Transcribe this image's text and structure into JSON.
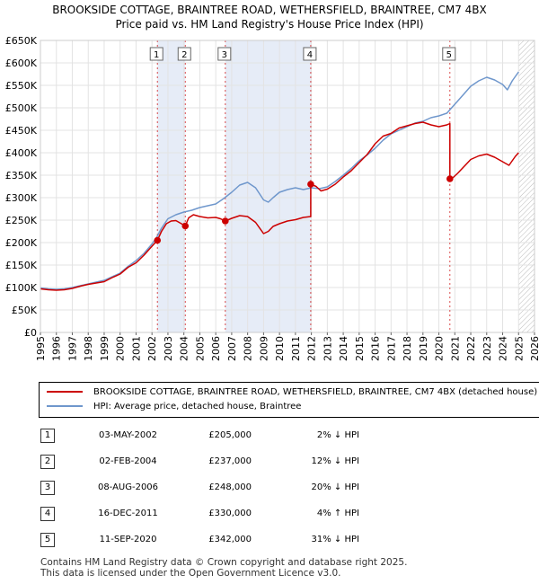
{
  "title": "BROOKSIDE COTTAGE, BRAINTREE ROAD, WETHERSFIELD, BRAINTREE, CM7 4BX",
  "subtitle": "Price paid vs. HM Land Registry's House Price Index (HPI)",
  "colors": {
    "property": "#cc0000",
    "hpi": "#6f97cc",
    "shade": "#e6ecf7",
    "hatch": "#bbbbbb"
  },
  "chart_data": {
    "type": "line",
    "xlim": [
      1995,
      2026
    ],
    "ylim": [
      0,
      650000
    ],
    "x_ticks": [
      "1995",
      "1996",
      "1997",
      "1998",
      "1999",
      "2000",
      "2001",
      "2002",
      "2003",
      "2004",
      "2005",
      "2006",
      "2007",
      "2008",
      "2009",
      "2010",
      "2011",
      "2012",
      "2013",
      "2014",
      "2015",
      "2016",
      "2017",
      "2018",
      "2019",
      "2020",
      "2021",
      "2022",
      "2023",
      "2024",
      "2025",
      "2026"
    ],
    "y_ticks": [
      {
        "value": 0,
        "label": "£0"
      },
      {
        "value": 50000,
        "label": "£50K"
      },
      {
        "value": 100000,
        "label": "£100K"
      },
      {
        "value": 150000,
        "label": "£150K"
      },
      {
        "value": 200000,
        "label": "£200K"
      },
      {
        "value": 250000,
        "label": "£250K"
      },
      {
        "value": 300000,
        "label": "£300K"
      },
      {
        "value": 350000,
        "label": "£350K"
      },
      {
        "value": 400000,
        "label": "£400K"
      },
      {
        "value": 450000,
        "label": "£450K"
      },
      {
        "value": 500000,
        "label": "£500K"
      },
      {
        "value": 550000,
        "label": "£550K"
      },
      {
        "value": 600000,
        "label": "£600K"
      },
      {
        "value": 650000,
        "label": "£650K"
      }
    ],
    "series": [
      {
        "name": "BROOKSIDE COTTAGE, BRAINTREE ROAD, WETHERSFIELD, BRAINTREE, CM7 4BX (detached house)",
        "color": "#cc0000",
        "x": [
          1995.0,
          1995.5,
          1996.0,
          1996.5,
          1997.0,
          1997.5,
          1998.0,
          1998.5,
          1999.0,
          1999.5,
          2000.0,
          2000.5,
          2001.0,
          2001.5,
          2002.0,
          2002.34,
          2002.34,
          2002.6,
          2002.9,
          2003.2,
          2003.5,
          2003.8,
          2004.09,
          2004.09,
          2004.3,
          2004.6,
          2005.0,
          2005.5,
          2006.0,
          2006.3,
          2006.6,
          2006.6,
          2007.0,
          2007.5,
          2008.0,
          2008.5,
          2009.0,
          2009.3,
          2009.6,
          2010.0,
          2010.5,
          2011.0,
          2011.5,
          2011.96,
          2011.96,
          2012.3,
          2012.6,
          2013.0,
          2013.5,
          2014.0,
          2014.5,
          2015.0,
          2015.5,
          2016.0,
          2016.5,
          2017.0,
          2017.5,
          2018.0,
          2018.5,
          2019.0,
          2019.5,
          2020.0,
          2020.5,
          2020.69,
          2020.69,
          2020.9,
          2021.2,
          2021.6,
          2022.0,
          2022.5,
          2023.0,
          2023.5,
          2024.0,
          2024.4,
          2024.8,
          2025.0
        ],
        "values": [
          97000,
          95000,
          94000,
          95000,
          98000,
          103000,
          107000,
          110000,
          113000,
          122000,
          130000,
          145000,
          155000,
          172000,
          192000,
          205000,
          205000,
          225000,
          242000,
          248000,
          249000,
          243000,
          237000,
          237000,
          255000,
          262000,
          258000,
          255000,
          256000,
          253000,
          248000,
          248000,
          254000,
          260000,
          258000,
          245000,
          220000,
          225000,
          236000,
          242000,
          248000,
          251000,
          256000,
          258000,
          330000,
          325000,
          315000,
          319000,
          330000,
          346000,
          360000,
          378000,
          396000,
          420000,
          437000,
          443000,
          455000,
          460000,
          465000,
          468000,
          462000,
          458000,
          462000,
          465000,
          342000,
          345000,
          355000,
          370000,
          385000,
          393000,
          397000,
          390000,
          380000,
          372000,
          392000,
          400000
        ]
      },
      {
        "name": "HPI: Average price, detached house, Braintree",
        "color": "#6f97cc",
        "x": [
          1995.0,
          1995.5,
          1996.0,
          1996.5,
          1997.0,
          1997.5,
          1998.0,
          1998.5,
          1999.0,
          1999.5,
          2000.0,
          2000.5,
          2001.0,
          2001.5,
          2002.0,
          2002.3,
          2002.6,
          2003.0,
          2003.5,
          2004.0,
          2004.5,
          2005.0,
          2005.5,
          2006.0,
          2006.5,
          2007.0,
          2007.5,
          2008.0,
          2008.5,
          2009.0,
          2009.3,
          2009.6,
          2010.0,
          2010.5,
          2011.0,
          2011.5,
          2012.0,
          2012.5,
          2013.0,
          2013.5,
          2014.0,
          2014.5,
          2015.0,
          2015.5,
          2016.0,
          2016.5,
          2017.0,
          2017.5,
          2018.0,
          2018.5,
          2019.0,
          2019.5,
          2020.0,
          2020.5,
          2021.0,
          2021.5,
          2022.0,
          2022.5,
          2023.0,
          2023.5,
          2024.0,
          2024.3,
          2024.6,
          2025.0
        ],
        "values": [
          99000,
          97000,
          96000,
          97000,
          100000,
          104000,
          108000,
          112000,
          116000,
          124000,
          132000,
          147000,
          160000,
          176000,
          197000,
          212000,
          232000,
          253000,
          262000,
          268000,
          272000,
          278000,
          282000,
          286000,
          298000,
          312000,
          328000,
          334000,
          322000,
          295000,
          290000,
          300000,
          312000,
          318000,
          322000,
          318000,
          322000,
          320000,
          324000,
          336000,
          350000,
          365000,
          382000,
          395000,
          410000,
          428000,
          442000,
          450000,
          458000,
          466000,
          470000,
          478000,
          482000,
          488000,
          508000,
          528000,
          548000,
          560000,
          568000,
          562000,
          552000,
          540000,
          560000,
          580000
        ]
      }
    ],
    "sales": [
      {
        "id": "1",
        "year": 2002.34,
        "price": 205000
      },
      {
        "id": "2",
        "year": 2004.09,
        "price": 237000
      },
      {
        "id": "3",
        "year": 2006.6,
        "price": 248000
      },
      {
        "id": "4",
        "year": 2011.96,
        "price": 330000
      },
      {
        "id": "5",
        "year": 2020.69,
        "price": 342000
      }
    ],
    "shaded_spans": [
      [
        2002.34,
        2004.09
      ],
      [
        2006.6,
        2011.96
      ]
    ],
    "forecast_from": 2025.0,
    "legend_placement": "bottom"
  },
  "legend": {
    "property": "BROOKSIDE COTTAGE, BRAINTREE ROAD, WETHERSFIELD, BRAINTREE, CM7 4BX (detached house)",
    "hpi": "HPI: Average price, detached house, Braintree"
  },
  "table": [
    {
      "num": "1",
      "date": "03-MAY-2002",
      "price": "£205,000",
      "hpi": "2% ↓ HPI"
    },
    {
      "num": "2",
      "date": "02-FEB-2004",
      "price": "£237,000",
      "hpi": "12% ↓ HPI"
    },
    {
      "num": "3",
      "date": "08-AUG-2006",
      "price": "£248,000",
      "hpi": "20% ↓ HPI"
    },
    {
      "num": "4",
      "date": "16-DEC-2011",
      "price": "£330,000",
      "hpi": "4% ↑ HPI"
    },
    {
      "num": "5",
      "date": "11-SEP-2020",
      "price": "£342,000",
      "hpi": "31% ↓ HPI"
    }
  ],
  "footer": {
    "line1": "Contains HM Land Registry data © Crown copyright and database right 2025.",
    "line2": "This data is licensed under the Open Government Licence v3.0."
  }
}
